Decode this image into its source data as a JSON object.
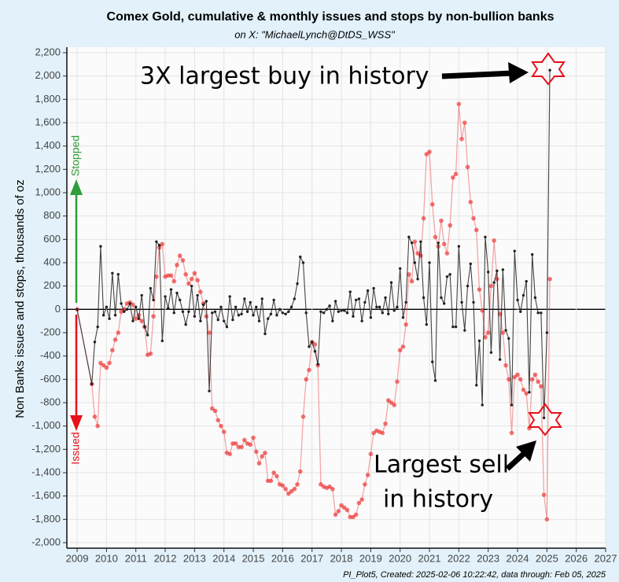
{
  "chart_data": {
    "type": "line",
    "title": "Comex Gold, cumulative & monthly issues and stops by non-bullion banks",
    "subtitle": "on X:   \"MichaelLynch@DtDS_WSS\"",
    "ylabel": "Non Banks issues and stops, thousands of oz",
    "footer": "PI_Plot5, Created: 2025-02-06 10:22:42, data through: Feb 05, 2025",
    "annotations": [
      "3X largest buy in history",
      "Largest sell",
      "in history",
      "Stopped",
      "Issued"
    ],
    "grid": true,
    "xlim": [
      2008.65,
      2027
    ],
    "xticks": [
      2009,
      2010,
      2011,
      2012,
      2013,
      2014,
      2015,
      2016,
      2017,
      2018,
      2019,
      2020,
      2021,
      2022,
      2023,
      2024,
      2025,
      2026,
      2027
    ],
    "ylim": [
      -2000,
      2200
    ],
    "yticks": [
      {
        "value": -2000,
        "label": "-2,000"
      },
      {
        "value": -1800,
        "label": "-1,800"
      },
      {
        "value": -1600,
        "label": "-1,600"
      },
      {
        "value": -1400,
        "label": "-1,400"
      },
      {
        "value": -1200,
        "label": "-1,200"
      },
      {
        "value": -1000,
        "label": "-1,000"
      },
      -800,
      -600,
      -400,
      -200,
      0,
      200,
      400,
      600,
      800,
      {
        "value": 1000,
        "label": "1,000"
      },
      {
        "value": 1200,
        "label": "1,200"
      },
      {
        "value": 1400,
        "label": "1,400"
      },
      {
        "value": 1600,
        "label": "1,600"
      },
      {
        "value": 1800,
        "label": "1,800"
      },
      {
        "value": 2000,
        "label": "2,000"
      },
      {
        "value": 2200,
        "label": "2,200"
      }
    ],
    "x": [
      2009,
      2009.5,
      2009.6,
      2009.7,
      2009.8,
      2009.9,
      2010,
      2010.1,
      2010.2,
      2010.3,
      2010.4,
      2010.5,
      2010.6,
      2010.7,
      2010.8,
      2010.9,
      2011,
      2011.1,
      2011.2,
      2011.3,
      2011.4,
      2011.5,
      2011.6,
      2011.7,
      2011.8,
      2011.9,
      2012,
      2012.1,
      2012.2,
      2012.3,
      2012.4,
      2012.5,
      2012.6,
      2012.7,
      2012.8,
      2012.9,
      2013,
      2013.1,
      2013.2,
      2013.3,
      2013.4,
      2013.5,
      2013.6,
      2013.7,
      2013.8,
      2013.9,
      2014,
      2014.1,
      2014.2,
      2014.3,
      2014.4,
      2014.5,
      2014.6,
      2014.7,
      2014.8,
      2014.9,
      2015,
      2015.1,
      2015.2,
      2015.3,
      2015.4,
      2015.5,
      2015.6,
      2015.7,
      2015.8,
      2015.9,
      2016,
      2016.1,
      2016.2,
      2016.3,
      2016.4,
      2016.5,
      2016.6,
      2016.7,
      2016.8,
      2016.9,
      2017,
      2017.1,
      2017.2,
      2017.3,
      2017.4,
      2017.5,
      2017.6,
      2017.7,
      2017.8,
      2017.9,
      2018,
      2018.1,
      2018.2,
      2018.3,
      2018.4,
      2018.5,
      2018.6,
      2018.7,
      2018.8,
      2018.9,
      2019,
      2019.1,
      2019.2,
      2019.3,
      2019.4,
      2019.5,
      2019.6,
      2019.7,
      2019.8,
      2019.9,
      2020,
      2020.1,
      2020.2,
      2020.3,
      2020.4,
      2020.5,
      2020.6,
      2020.7,
      2020.8,
      2020.9,
      2021,
      2021.1,
      2021.2,
      2021.3,
      2021.4,
      2021.5,
      2021.6,
      2021.7,
      2021.8,
      2021.9,
      2022,
      2022.1,
      2022.2,
      2022.3,
      2022.4,
      2022.5,
      2022.6,
      2022.7,
      2022.8,
      2022.9,
      2023,
      2023.1,
      2023.2,
      2023.3,
      2023.4,
      2023.5,
      2023.6,
      2023.7,
      2023.8,
      2023.9,
      2024,
      2024.1,
      2024.2,
      2024.3,
      2024.4,
      2024.5,
      2024.6,
      2024.7,
      2024.8,
      2024.9,
      2025,
      2025.1
    ],
    "series": [
      {
        "color": "#ee3b3b",
        "values": [
          0,
          -640,
          -920,
          -1000,
          -460,
          -480,
          -500,
          -460,
          -350,
          -260,
          -200,
          -20,
          0,
          50,
          60,
          40,
          -80,
          -50,
          -100,
          -150,
          -390,
          -380,
          -60,
          280,
          530,
          560,
          280,
          290,
          290,
          240,
          380,
          460,
          420,
          300,
          220,
          260,
          310,
          250,
          150,
          50,
          -60,
          -200,
          -850,
          -870,
          -950,
          -1000,
          -1050,
          -1230,
          -1240,
          -1150,
          -1150,
          -1180,
          -1180,
          -1120,
          -1150,
          -1160,
          -1100,
          -1220,
          -1320,
          -1260,
          -1230,
          -1470,
          -1470,
          -1400,
          -1430,
          -1500,
          -1510,
          -1540,
          -1580,
          -1560,
          -1540,
          -1500,
          -1390,
          -920,
          -600,
          -520,
          -280,
          -300,
          -480,
          -1500,
          -1520,
          -1530,
          -1520,
          -1540,
          -1760,
          -1730,
          -1680,
          -1700,
          -1720,
          -1780,
          -1780,
          -1760,
          -1660,
          -1630,
          -1500,
          -1420,
          -1240,
          -1060,
          -1040,
          -1050,
          -1060,
          -980,
          -780,
          -800,
          -820,
          -620,
          -350,
          -320,
          -130,
          300,
          240,
          580,
          480,
          460,
          780,
          1330,
          1350,
          900,
          620,
          540,
          760,
          560,
          480,
          720,
          1130,
          1160,
          1760,
          1460,
          1600,
          1220,
          920,
          780,
          680,
          170,
          -10,
          -240,
          -200,
          200,
          590,
          260,
          -40,
          -200,
          -480,
          -600,
          -1060,
          -580,
          -560,
          -600,
          -690,
          -720,
          -1020,
          -600,
          -560,
          -620,
          -660,
          -1590,
          -1800,
          260
        ]
      },
      {
        "color": "#222222",
        "values": [
          0,
          -640,
          -280,
          -150,
          540,
          -50,
          20,
          -80,
          310,
          -50,
          300,
          50,
          -20,
          0,
          50,
          -100,
          20,
          -80,
          120,
          -150,
          -220,
          180,
          80,
          580,
          550,
          -270,
          110,
          10,
          170,
          -30,
          140,
          80,
          -20,
          -130,
          -20,
          200,
          -60,
          120,
          -100,
          40,
          70,
          -700,
          -30,
          -20,
          -90,
          20,
          -100,
          -150,
          110,
          -90,
          20,
          -50,
          -40,
          90,
          -20,
          60,
          -50,
          20,
          -100,
          90,
          -210,
          -80,
          -40,
          80,
          -50,
          0,
          -30,
          -40,
          -20,
          20,
          90,
          220,
          450,
          400,
          -30,
          -320,
          -280,
          -360,
          -470,
          -20,
          -30,
          0,
          30,
          -100,
          70,
          -20,
          -10,
          -10,
          -30,
          150,
          -60,
          80,
          90,
          -100,
          60,
          160,
          -70,
          180,
          20,
          20,
          -30,
          100,
          -40,
          230,
          -10,
          20,
          350,
          -70,
          60,
          620,
          570,
          400,
          260,
          580,
          100,
          -130,
          400,
          -450,
          -610,
          570,
          100,
          50,
          280,
          300,
          -150,
          -150,
          540,
          60,
          -180,
          200,
          390,
          60,
          -650,
          -270,
          -820,
          620,
          320,
          -370,
          230,
          330,
          -430,
          340,
          -180,
          -250,
          -820,
          500,
          80,
          -20,
          120,
          240,
          -710,
          470,
          100,
          -30,
          -30,
          -930,
          -200,
          2050
        ]
      }
    ]
  }
}
